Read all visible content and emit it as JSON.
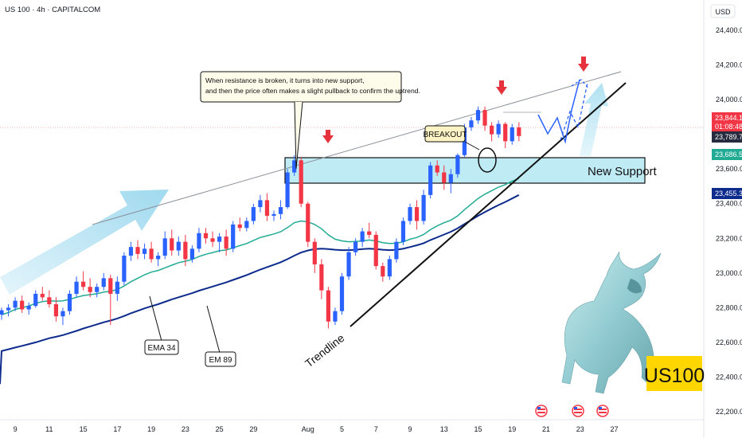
{
  "header": {
    "symbol_line": "US 100 · 4h · CAPITALCOM",
    "currency": "USD"
  },
  "colors": {
    "up": "#2962ff",
    "down": "#f23645",
    "ema34": "#22ab94",
    "ema89": "#0d2b8c",
    "zone_fill": "#a9e4f2",
    "zone_stroke": "#111111",
    "arrow": "#e5323d",
    "brand_bg": "#ffd600",
    "last_price_bg": "#f23645",
    "close_bg": "#262b3e",
    "ema34_tag_bg": "#22ab94",
    "ema89_tag_bg": "#0d2b8c"
  },
  "chart_data": {
    "type": "candlestick",
    "y_axis": {
      "range": [
        22180,
        24500
      ],
      "tick_labels": [
        "24,400.0",
        "24,200.0",
        "24,000.0",
        "23,800.0",
        "23,600.0",
        "23,400.0",
        "23,200.0",
        "23,000.0",
        "22,800.0",
        "22,600.0",
        "22,400.0",
        "22,200.0"
      ],
      "tick_values": [
        24400,
        24200,
        24000,
        23800,
        23600,
        23400,
        23200,
        23000,
        22800,
        22600,
        22400,
        22200
      ]
    },
    "x_axis": {
      "tick_labels": [
        "9",
        "11",
        "15",
        "17",
        "19",
        "23",
        "25",
        "29",
        "Aug",
        "5",
        "7",
        "9",
        "13",
        "15",
        "19",
        "21",
        "23",
        "27"
      ],
      "tick_index": [
        2,
        7,
        12,
        17,
        22,
        27,
        32,
        37,
        45,
        50,
        55,
        60,
        65,
        70,
        75,
        80,
        85,
        90
      ]
    },
    "candles": [
      [
        22760,
        22800,
        22730,
        22785
      ],
      [
        22785,
        22820,
        22750,
        22800
      ],
      [
        22800,
        22860,
        22780,
        22840
      ],
      [
        22840,
        22870,
        22770,
        22790
      ],
      [
        22790,
        22830,
        22760,
        22810
      ],
      [
        22810,
        22900,
        22800,
        22880
      ],
      [
        22880,
        22920,
        22840,
        22860
      ],
      [
        22860,
        22900,
        22800,
        22820
      ],
      [
        22820,
        22860,
        22720,
        22750
      ],
      [
        22750,
        22800,
        22700,
        22780
      ],
      [
        22780,
        22900,
        22760,
        22880
      ],
      [
        22880,
        22980,
        22860,
        22950
      ],
      [
        22950,
        23010,
        22900,
        22920
      ],
      [
        22920,
        22970,
        22860,
        22890
      ],
      [
        22890,
        22940,
        22860,
        22920
      ],
      [
        22920,
        23000,
        22900,
        22970
      ],
      [
        22970,
        22990,
        22700,
        22880
      ],
      [
        22880,
        22980,
        22840,
        22950
      ],
      [
        22950,
        23120,
        22930,
        23100
      ],
      [
        23100,
        23180,
        23070,
        23150
      ],
      [
        23150,
        23190,
        23080,
        23110
      ],
      [
        23110,
        23170,
        23080,
        23140
      ],
      [
        23140,
        23180,
        23060,
        23080
      ],
      [
        23080,
        23120,
        23040,
        23100
      ],
      [
        23100,
        23240,
        23080,
        23200
      ],
      [
        23200,
        23250,
        23100,
        23130
      ],
      [
        23130,
        23210,
        23100,
        23180
      ],
      [
        23180,
        23220,
        23040,
        23080
      ],
      [
        23080,
        23160,
        23060,
        23140
      ],
      [
        23140,
        23260,
        23120,
        23230
      ],
      [
        23230,
        23260,
        23170,
        23200
      ],
      [
        23200,
        23240,
        23150,
        23180
      ],
      [
        23180,
        23230,
        23120,
        23210
      ],
      [
        23210,
        23250,
        23100,
        23140
      ],
      [
        23140,
        23300,
        23120,
        23280
      ],
      [
        23280,
        23320,
        23240,
        23260
      ],
      [
        23260,
        23320,
        23240,
        23300
      ],
      [
        23300,
        23400,
        23280,
        23380
      ],
      [
        23380,
        23450,
        23350,
        23420
      ],
      [
        23420,
        23460,
        23300,
        23330
      ],
      [
        23330,
        23360,
        23300,
        23340
      ],
      [
        23340,
        23420,
        23310,
        23380
      ],
      [
        23380,
        23600,
        23370,
        23580
      ],
      [
        23580,
        23680,
        23560,
        23650
      ],
      [
        23650,
        23670,
        23380,
        23400
      ],
      [
        23400,
        23410,
        23150,
        23180
      ],
      [
        23180,
        23200,
        23000,
        23050
      ],
      [
        23050,
        23080,
        22850,
        22900
      ],
      [
        22900,
        22920,
        22680,
        22720
      ],
      [
        22720,
        22800,
        22700,
        22780
      ],
      [
        22780,
        23000,
        22760,
        22980
      ],
      [
        22980,
        23150,
        22960,
        23120
      ],
      [
        23120,
        23200,
        23100,
        23180
      ],
      [
        23180,
        23260,
        23150,
        23240
      ],
      [
        23240,
        23290,
        23200,
        23220
      ],
      [
        23220,
        23240,
        23020,
        23040
      ],
      [
        23040,
        23060,
        22950,
        22980
      ],
      [
        22980,
        23100,
        22960,
        23080
      ],
      [
        23080,
        23200,
        23060,
        23180
      ],
      [
        23180,
        23320,
        23160,
        23300
      ],
      [
        23300,
        23400,
        23280,
        23380
      ],
      [
        23380,
        23420,
        23250,
        23300
      ],
      [
        23300,
        23480,
        23280,
        23450
      ],
      [
        23450,
        23640,
        23430,
        23620
      ],
      [
        23620,
        23650,
        23560,
        23580
      ],
      [
        23580,
        23620,
        23480,
        23520
      ],
      [
        23520,
        23600,
        23460,
        23570
      ],
      [
        23570,
        23690,
        23550,
        23680
      ],
      [
        23680,
        23860,
        23670,
        23840
      ],
      [
        23840,
        23900,
        23820,
        23880
      ],
      [
        23880,
        23960,
        23860,
        23940
      ],
      [
        23940,
        23960,
        23820,
        23850
      ],
      [
        23850,
        23870,
        23760,
        23800
      ],
      [
        23800,
        23880,
        23780,
        23860
      ],
      [
        23860,
        23870,
        23720,
        23760
      ],
      [
        23760,
        23860,
        23740,
        23840
      ],
      [
        23840,
        23870,
        23760,
        23790
      ]
    ],
    "ema34": [
      22760,
      22772,
      22790,
      22800,
      22810,
      22825,
      22835,
      22840,
      22838,
      22840,
      22848,
      22860,
      22870,
      22875,
      22880,
      22890,
      22895,
      22905,
      22925,
      22950,
      22970,
      22990,
      23005,
      23015,
      23030,
      23045,
      23060,
      23068,
      23078,
      23095,
      23108,
      23118,
      23128,
      23133,
      23145,
      23158,
      23170,
      23188,
      23205,
      23215,
      23225,
      23238,
      23262,
      23290,
      23300,
      23295,
      23280,
      23255,
      23220,
      23195,
      23185,
      23180,
      23182,
      23185,
      23190,
      23185,
      23175,
      23170,
      23172,
      23180,
      23195,
      23205,
      23222,
      23250,
      23272,
      23290,
      23305,
      23330,
      23365,
      23398,
      23430,
      23455,
      23475,
      23495,
      23510,
      23530,
      23545
    ],
    "ema89": [
      22550,
      22560,
      22570,
      22580,
      22590,
      22600,
      22612,
      22624,
      22632,
      22642,
      22654,
      22666,
      22680,
      22692,
      22704,
      22716,
      22726,
      22738,
      22752,
      22768,
      22782,
      22796,
      22808,
      22820,
      22834,
      22848,
      22860,
      22872,
      22884,
      22898,
      22910,
      22922,
      22934,
      22946,
      22960,
      22974,
      22988,
      23004,
      23020,
      23034,
      23048,
      23062,
      23080,
      23100,
      23118,
      23130,
      23138,
      23140,
      23138,
      23134,
      23132,
      23132,
      23134,
      23138,
      23140,
      23138,
      23134,
      23132,
      23134,
      23140,
      23150,
      23160,
      23172,
      23190,
      23206,
      23222,
      23238,
      23258,
      23282,
      23306,
      23330,
      23352,
      23372,
      23392,
      23410,
      23430,
      23450
    ],
    "support_zone": [
      23520,
      23680
    ],
    "last_price": {
      "value": "23,844.1",
      "countdown": "01:08:48"
    },
    "price_tags": [
      "23,789.7",
      "23,686.5",
      "23,455.3"
    ],
    "annotations": {
      "note": [
        "When resistance is broken, it turns into new support,",
        "and then the price often makes a slight pullback to confirm the uptrend."
      ],
      "breakout": "BREAKOUT",
      "new_support": "New Support",
      "ema34_label": "EMA 34",
      "ema89_label": "EM 89",
      "trendline": "Trendline",
      "brand": "US100"
    }
  }
}
